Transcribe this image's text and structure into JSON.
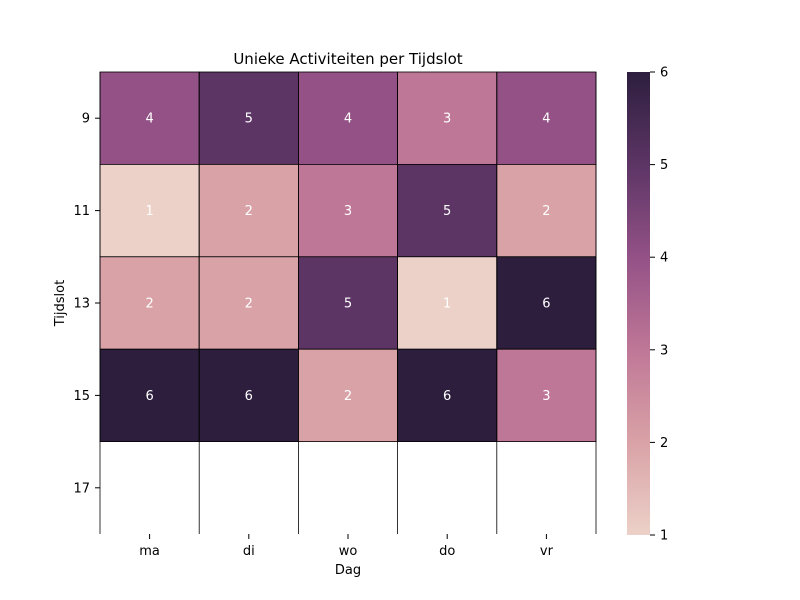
{
  "chart_data": {
    "type": "heatmap",
    "title": "Unieke Activiteiten per Tijdslot",
    "xlabel": "Dag",
    "ylabel": "Tijdslot",
    "x_categories": [
      "ma",
      "di",
      "wo",
      "do",
      "vr"
    ],
    "y_categories": [
      "9",
      "11",
      "13",
      "15",
      "17"
    ],
    "values": [
      [
        4,
        5,
        4,
        3,
        4
      ],
      [
        1,
        2,
        3,
        5,
        2
      ],
      [
        2,
        2,
        5,
        1,
        6
      ],
      [
        6,
        6,
        2,
        6,
        3
      ],
      [
        null,
        null,
        null,
        null,
        null
      ]
    ],
    "colorbar": {
      "min": 1,
      "max": 6,
      "ticks": [
        "1",
        "2",
        "3",
        "4",
        "5",
        "6"
      ],
      "colors": [
        "#ecd1c8",
        "#d9a2a6",
        "#bf7797",
        "#935186",
        "#5c3565",
        "#2d1e3e"
      ]
    }
  }
}
